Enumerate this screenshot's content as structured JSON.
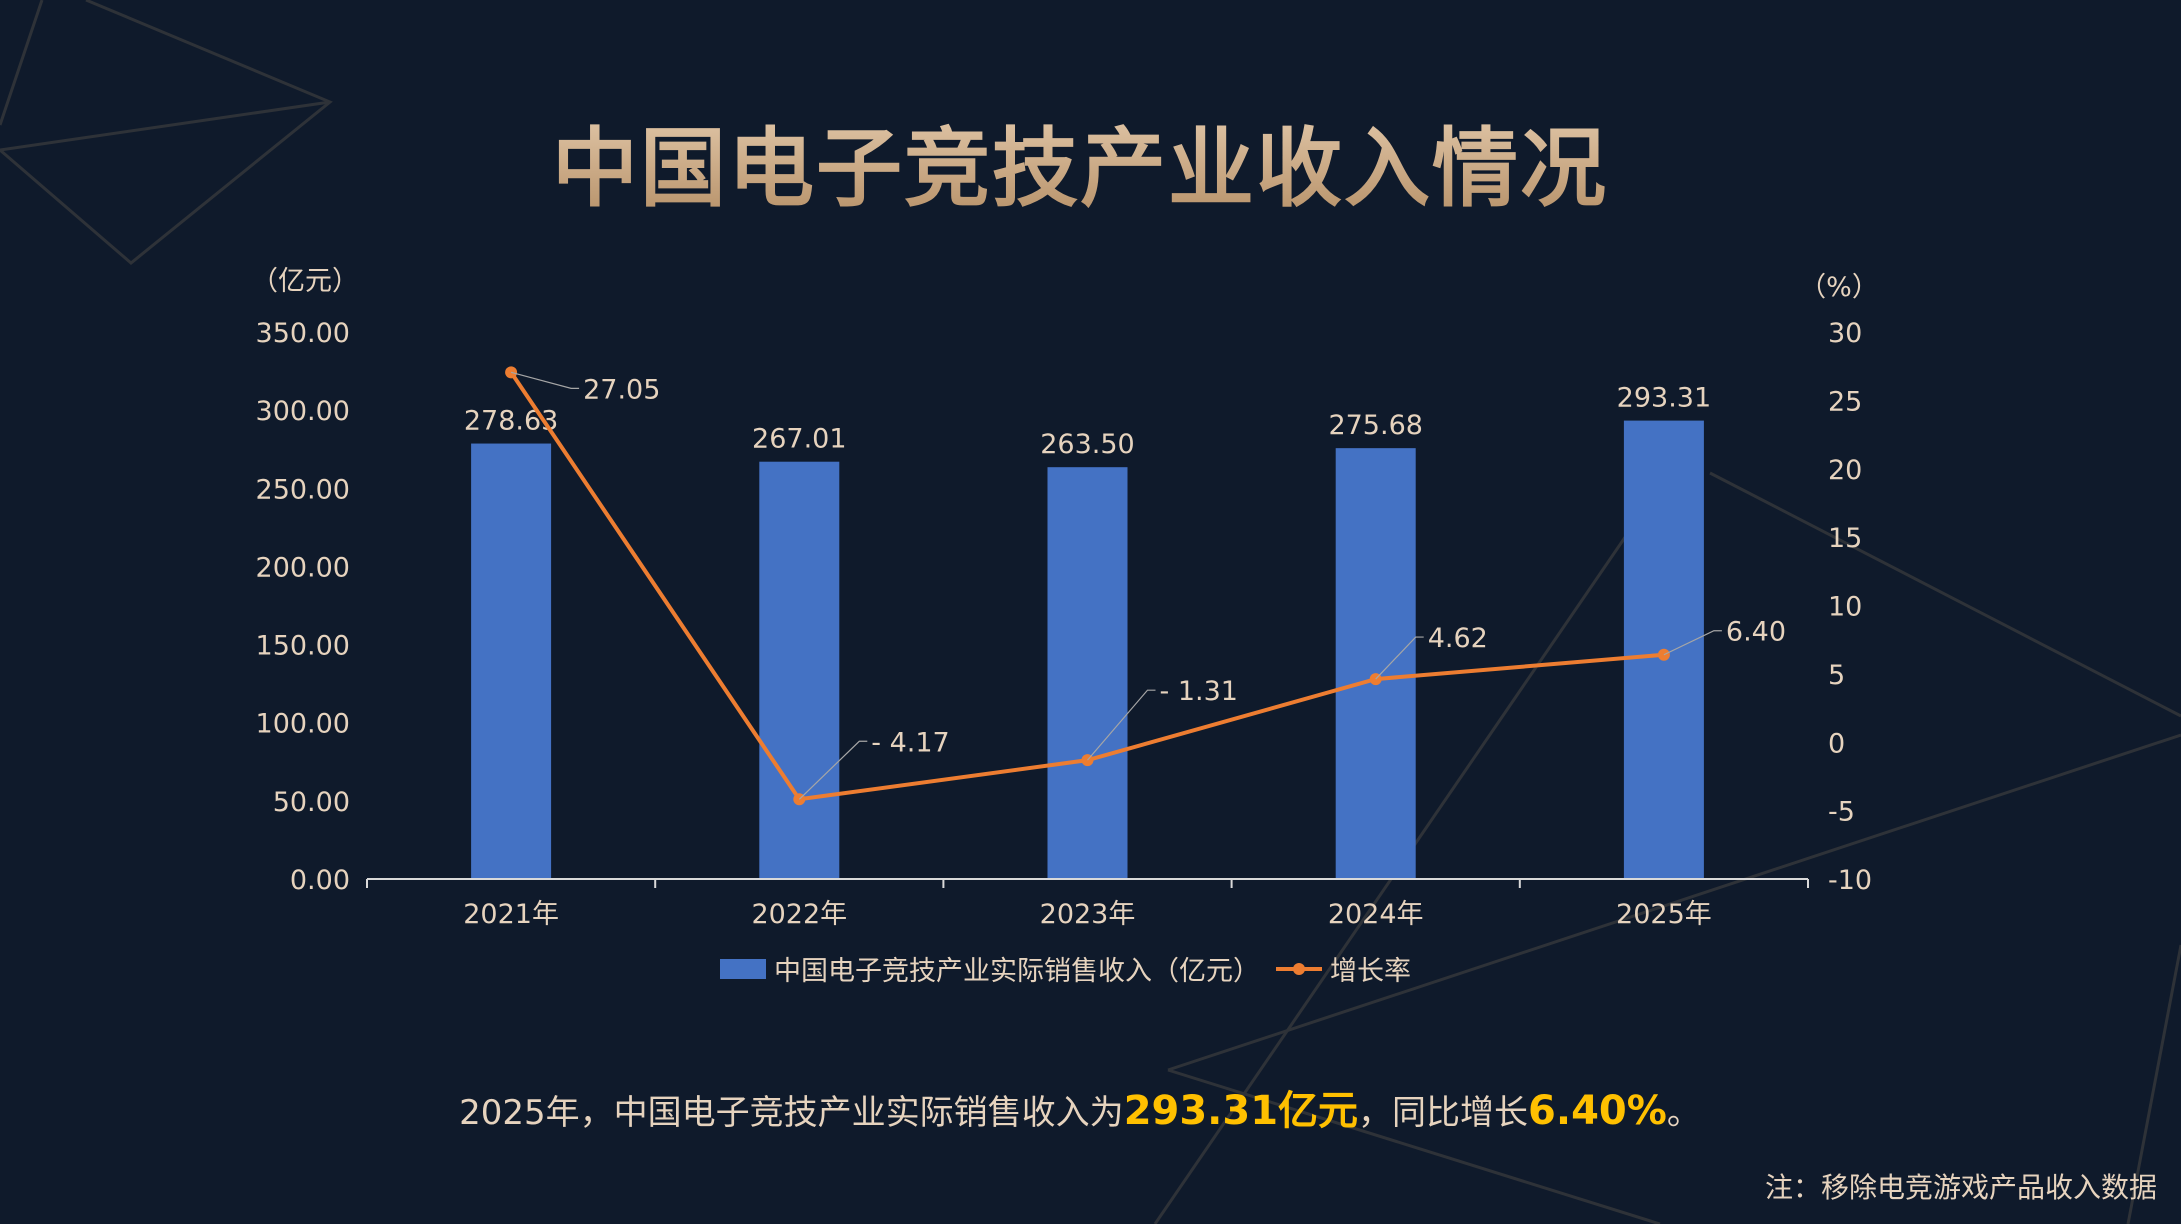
{
  "title": "中国电子竞技产业收入情况",
  "summary": {
    "prefix": "2025年，中国电子竞技产业实际销售收入为",
    "revenue": "293.31亿元",
    "middle": "，同比增长",
    "growth": "6.40%",
    "suffix": "。"
  },
  "note": "注：移除电竞游戏产品收入数据",
  "chart_data": {
    "type": "bar+line",
    "categories": [
      "2021年",
      "2022年",
      "2023年",
      "2024年",
      "2025年"
    ],
    "series": [
      {
        "name": "中国电子竞技产业实际销售收入（亿元）",
        "type": "bar",
        "axis": "left",
        "color": "#4472c4",
        "values": [
          278.63,
          267.01,
          263.5,
          275.68,
          293.31
        ],
        "labels": [
          "278.63",
          "267.01",
          "263.50",
          "275.68",
          "293.31"
        ]
      },
      {
        "name": "增长率",
        "type": "line",
        "axis": "right",
        "color": "#ed7d31",
        "values": [
          27.05,
          -4.17,
          -1.31,
          4.62,
          6.4
        ],
        "labels": [
          "27.05",
          "- 4.17",
          "- 1.31",
          "4.62",
          "6.40"
        ]
      }
    ],
    "y_left": {
      "label": "（亿元）",
      "range": [
        0,
        350
      ],
      "ticks": [
        "0.00",
        "50.00",
        "100.00",
        "150.00",
        "200.00",
        "250.00",
        "300.00",
        "350.00"
      ]
    },
    "y_right": {
      "label": "（%）",
      "range": [
        -10,
        30
      ],
      "ticks": [
        "-10",
        "-5",
        "0",
        "5",
        "10",
        "15",
        "20",
        "25",
        "30"
      ]
    },
    "legend": "bottom",
    "grid": false
  }
}
